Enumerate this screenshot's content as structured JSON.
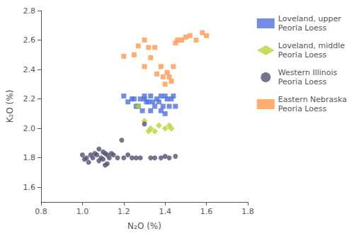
{
  "chart_data": {
    "type": "scatter",
    "xlabel": "N₂O (%)",
    "ylabel": "K₂O (%)",
    "xlim": [
      0.8,
      1.8
    ],
    "ylim": [
      1.5,
      2.8
    ],
    "xticks": [
      0.8,
      {
        "value": 1.0,
        "label": "1.0"
      },
      1.2,
      1.4,
      1.6,
      1.8
    ],
    "yticks": [
      1.6,
      1.8,
      {
        "value": 2.0,
        "label": "2.0"
      },
      2.2,
      2.4,
      2.6,
      2.8
    ],
    "grid": false,
    "legend": "right",
    "series": [
      {
        "name": "Loveland, upper\nPeoria Loess",
        "marker": "square",
        "x": [
          1.2,
          1.22,
          1.24,
          1.25,
          1.26,
          1.27,
          1.28,
          1.29,
          1.3,
          1.3,
          1.31,
          1.32,
          1.33,
          1.33,
          1.34,
          1.35,
          1.36,
          1.37,
          1.38,
          1.38,
          1.39,
          1.4,
          1.4,
          1.41,
          1.42,
          1.43,
          1.44,
          1.45
        ],
        "values": [
          2.22,
          2.18,
          2.2,
          2.2,
          2.15,
          2.15,
          2.2,
          2.12,
          2.2,
          2.22,
          2.18,
          2.18,
          2.12,
          2.22,
          2.18,
          2.15,
          2.2,
          2.18,
          2.12,
          2.22,
          2.15,
          2.22,
          2.1,
          2.2,
          2.15,
          2.2,
          2.22,
          2.15
        ]
      },
      {
        "name": "Loveland, middle\nPeoria Loess",
        "marker": "diamond",
        "x": [
          1.27,
          1.3,
          1.32,
          1.33,
          1.35,
          1.37,
          1.4,
          1.42,
          1.43
        ],
        "values": [
          2.15,
          2.05,
          1.98,
          2.0,
          1.98,
          2.02,
          2.0,
          2.02,
          2.0
        ]
      },
      {
        "name": "Western Illinois\nPeoria Loess",
        "marker": "circle",
        "x": [
          1.0,
          1.01,
          1.02,
          1.03,
          1.04,
          1.05,
          1.06,
          1.07,
          1.08,
          1.08,
          1.09,
          1.1,
          1.1,
          1.11,
          1.11,
          1.12,
          1.12,
          1.13,
          1.14,
          1.15,
          1.17,
          1.19,
          1.2,
          1.22,
          1.24,
          1.26,
          1.28,
          1.3,
          1.33,
          1.35,
          1.38,
          1.4,
          1.42,
          1.45
        ],
        "values": [
          1.82,
          1.79,
          1.8,
          1.77,
          1.82,
          1.8,
          1.83,
          1.82,
          1.78,
          1.86,
          1.8,
          1.84,
          1.79,
          1.83,
          1.75,
          1.82,
          1.76,
          1.8,
          1.83,
          1.82,
          1.8,
          1.92,
          1.8,
          1.82,
          1.8,
          1.8,
          1.8,
          2.03,
          1.8,
          1.8,
          1.8,
          1.81,
          1.8,
          1.81
        ]
      },
      {
        "name": "Eastern Nebraska\nPeoria Loess",
        "marker": "square",
        "x": [
          1.2,
          1.25,
          1.27,
          1.3,
          1.3,
          1.32,
          1.33,
          1.35,
          1.36,
          1.38,
          1.39,
          1.4,
          1.41,
          1.42,
          1.43,
          1.44,
          1.45,
          1.46,
          1.48,
          1.5,
          1.52,
          1.55,
          1.58,
          1.6
        ],
        "values": [
          2.49,
          2.5,
          2.56,
          2.6,
          2.42,
          2.55,
          2.48,
          2.55,
          2.37,
          2.42,
          2.35,
          2.3,
          2.38,
          2.35,
          2.32,
          2.42,
          2.58,
          2.6,
          2.6,
          2.62,
          2.63,
          2.6,
          2.65,
          2.63
        ]
      }
    ]
  }
}
